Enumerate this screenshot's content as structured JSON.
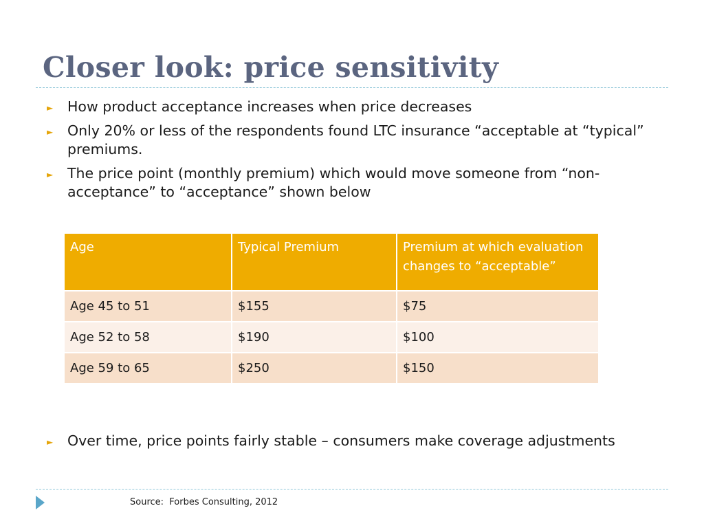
{
  "title": "Closer look: price sensitivity",
  "bullets": [
    "How product acceptance increases when price decreases",
    "Only 20% or less of the respondents found LTC insurance “acceptable at “typical” premiums.",
    "The price point (monthly premium) which would move someone from “non-acceptance” to “acceptance” shown below"
  ],
  "table": {
    "headers": [
      "Age",
      "Typical Premium",
      "Premium at which evaluation changes to “acceptable”"
    ],
    "rows": [
      [
        "Age 45 to 51",
        "$155",
        "$75"
      ],
      [
        "Age 52 to 58",
        "$190",
        "$100"
      ],
      [
        "Age 59 to 65",
        "$250",
        "$150"
      ]
    ]
  },
  "closing_bullet": "Over time, price points fairly stable – consumers make coverage adjustments",
  "source": "Source:  Forbes Consulting, 2012",
  "colors": {
    "title": "#5b6580",
    "header_bg": "#efac00",
    "row_odd": "#f7dfca",
    "row_even": "#fbf0e8",
    "bullet_marker": "#e5a50a",
    "rule": "#8fc6d8",
    "footer_arrow": "#5aa6c9"
  },
  "icons": {
    "bullet_marker": "triangle-right-icon",
    "footer": "play-arrow-icon"
  }
}
